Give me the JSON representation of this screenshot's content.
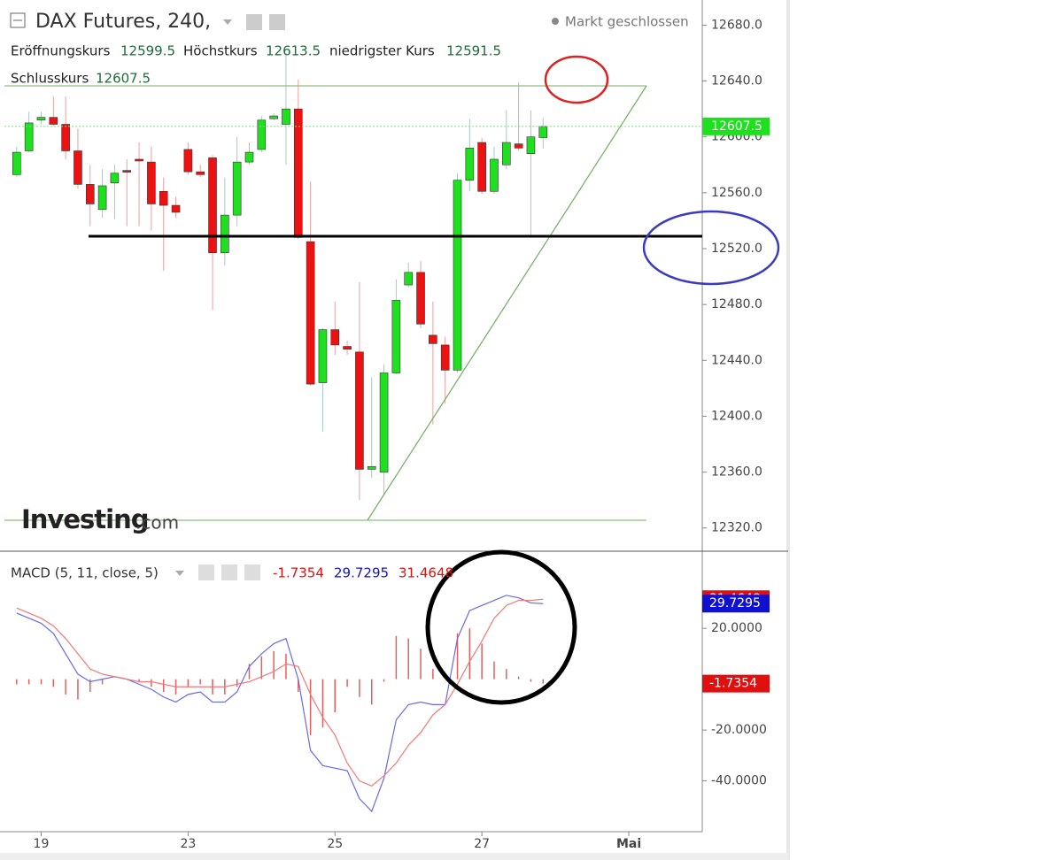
{
  "header": {
    "title": "DAX Futures, 240,",
    "status": "Markt geschlossen",
    "open_label": "Eröffnungskurs",
    "high_label": "Höchstkurs",
    "low_label": "niedrigster Kurs",
    "close_label": "Schlusskurs"
  },
  "watermark": [
    "Investing",
    ".com"
  ],
  "chart_data": [
    {
      "type": "candlestick",
      "x": [
        0,
        1,
        2,
        3,
        4,
        5,
        6,
        7,
        8,
        9,
        10,
        11,
        12,
        13,
        14,
        15,
        16,
        17,
        18,
        19,
        20,
        21,
        22,
        23,
        24,
        25,
        26,
        27,
        28,
        29,
        30,
        31,
        32,
        33,
        34,
        35,
        36,
        37,
        38,
        39,
        40,
        41,
        42,
        43
      ],
      "open": [
        12573,
        12590,
        12612,
        12614,
        12609,
        12590,
        12566,
        12548,
        12567,
        12576,
        12584,
        12582,
        12561,
        12551,
        12591,
        12575,
        12585,
        12517,
        12544,
        12582,
        12591,
        12613,
        12609,
        12620,
        12525,
        12424,
        12462,
        12450,
        12446,
        12362,
        12360,
        12431,
        12494,
        12503,
        12458,
        12451,
        12433,
        12569,
        12596,
        12561,
        12580,
        12595,
        12588,
        12599.5
      ],
      "high": [
        12593,
        12618,
        12618,
        12629,
        12629,
        12606,
        12580,
        12577,
        12580,
        12584,
        12596,
        12593,
        12571,
        12557,
        12596,
        12580,
        12587,
        12571,
        12600,
        12596,
        12615,
        12617,
        12660,
        12641,
        12568,
        12463,
        12482,
        12454,
        12496,
        12428,
        12437,
        12498,
        12510,
        12511,
        12482,
        12457,
        12574,
        12613,
        12599,
        12593,
        12619,
        12639,
        12619,
        12613.5
      ],
      "low": [
        12571,
        12589,
        12609,
        12608,
        12584,
        12563,
        12536,
        12542,
        12541,
        12536,
        12536,
        12533,
        12504,
        12542,
        12573,
        12571,
        12476,
        12508,
        12536,
        12580,
        12589,
        12612,
        12580,
        12527,
        12422,
        12389,
        12444,
        12444,
        12340,
        12356,
        12343,
        12430,
        12492,
        12463,
        12394,
        12409,
        12431,
        12561,
        12559,
        12559,
        12577,
        12590,
        12528,
        12591.5
      ],
      "close": [
        12589,
        12610,
        12614,
        12609,
        12590,
        12566,
        12552,
        12565,
        12574,
        12575,
        12583,
        12552,
        12551,
        12546,
        12575,
        12573,
        12517,
        12544,
        12582,
        12589,
        12612,
        12615,
        12620,
        12528,
        12423,
        12462,
        12451,
        12448,
        12362,
        12364,
        12431,
        12483,
        12503,
        12466,
        12452,
        12433,
        12569,
        12592,
        12561,
        12584,
        12596,
        12592,
        12600,
        12607.5
      ],
      "up_color": "#1ee01e",
      "down_color": "#ee1111",
      "xlim": [
        -1,
        56
      ],
      "xticks": [
        {
          "value": 2,
          "label": "19"
        },
        {
          "value": 14,
          "label": "23"
        },
        {
          "value": 26,
          "label": "25"
        },
        {
          "value": 38,
          "label": "27"
        },
        {
          "value": 50,
          "label": "Mai"
        }
      ],
      "ylim": [
        12304,
        12698
      ],
      "yticks": [
        {
          "value": 12320,
          "label": "12320.0"
        },
        {
          "value": 12360,
          "label": "12360.0"
        },
        {
          "value": 12400,
          "label": "12400.0"
        },
        {
          "value": 12440,
          "label": "12440.0"
        },
        {
          "value": 12480,
          "label": "12480.0"
        },
        {
          "value": 12520,
          "label": "12520.0"
        },
        {
          "value": 12560,
          "label": "12560.0"
        },
        {
          "value": 12600,
          "label": "12600.0"
        },
        {
          "value": 12640,
          "label": "12640.0"
        },
        {
          "value": 12680,
          "label": "12680.0"
        }
      ]
    },
    {
      "type": "macd",
      "title": "MACD (5, 11, close, 5)",
      "x": [
        0,
        1,
        2,
        3,
        4,
        5,
        6,
        7,
        8,
        9,
        10,
        11,
        12,
        13,
        14,
        15,
        16,
        17,
        18,
        19,
        20,
        21,
        22,
        23,
        24,
        25,
        26,
        27,
        28,
        29,
        30,
        31,
        32,
        33,
        34,
        35,
        36,
        37,
        38,
        39,
        40,
        41,
        42,
        43
      ],
      "histogram": {
        "color": "#e06060",
        "values": [
          -2,
          -2,
          -2,
          -3,
          -6,
          -8,
          -5,
          -2,
          0,
          0,
          -1,
          -3,
          -5,
          -6,
          -3,
          -2,
          -6,
          -6,
          -3,
          6,
          9,
          11,
          10,
          -5,
          -22,
          -19,
          -13,
          -3,
          -7,
          -10,
          -1,
          17,
          16,
          12,
          4,
          0,
          18,
          20,
          14,
          7,
          4,
          1,
          -1,
          -1.7354
        ]
      },
      "series": [
        {
          "color": "#6a6ae8",
          "values": [
            26,
            24,
            22,
            18,
            10,
            2,
            -1,
            0,
            1,
            0,
            -2,
            -4,
            -7,
            -9,
            -6,
            -5,
            -9,
            -9,
            -5,
            5,
            10,
            14,
            16,
            0,
            -28,
            -34,
            -35,
            -36,
            -47,
            -52,
            -39,
            -16,
            -10,
            -9,
            -10,
            -10,
            16,
            27,
            29,
            31,
            33,
            32,
            30,
            29.7295
          ]
        },
        {
          "color": "#f07878",
          "values": [
            28,
            26,
            24,
            21,
            16,
            10,
            4,
            2,
            1,
            0,
            -1,
            -1,
            -2,
            -3,
            -3,
            -3,
            -3,
            -3,
            -2,
            -1,
            1,
            3,
            6,
            5,
            -6,
            -15,
            -22,
            -33,
            -40,
            -42,
            -38,
            -33,
            -26,
            -21,
            -14,
            -10,
            -2,
            7,
            15,
            24,
            29,
            31,
            31,
            31.4648
          ]
        }
      ],
      "header_colors": [
        "#e01010",
        "#1010d0",
        "#e01010"
      ],
      "ylim": [
        -60,
        50
      ],
      "yticks": [
        {
          "value": -40,
          "label": "-40.0000"
        },
        {
          "value": -20,
          "label": "-20.0000"
        },
        {
          "value": 20,
          "label": "20.0000"
        }
      ]
    }
  ]
}
